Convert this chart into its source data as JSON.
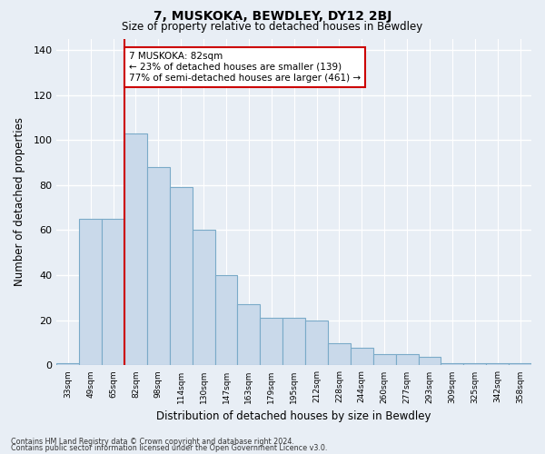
{
  "title": "7, MUSKOKA, BEWDLEY, DY12 2BJ",
  "subtitle": "Size of property relative to detached houses in Bewdley",
  "xlabel": "Distribution of detached houses by size in Bewdley",
  "ylabel": "Number of detached properties",
  "categories": [
    "33sqm",
    "49sqm",
    "65sqm",
    "82sqm",
    "98sqm",
    "114sqm",
    "130sqm",
    "147sqm",
    "163sqm",
    "179sqm",
    "195sqm",
    "212sqm",
    "228sqm",
    "244sqm",
    "260sqm",
    "277sqm",
    "293sqm",
    "309sqm",
    "325sqm",
    "342sqm",
    "358sqm"
  ],
  "values": [
    1,
    65,
    65,
    103,
    88,
    79,
    60,
    40,
    27,
    21,
    21,
    20,
    10,
    8,
    5,
    5,
    4,
    1,
    1,
    1,
    1
  ],
  "bar_color": "#c9d9ea",
  "bar_edge_color": "#7aaac8",
  "highlight_index": 3,
  "highlight_color": "#cc0000",
  "ylim": [
    0,
    145
  ],
  "yticks": [
    0,
    20,
    40,
    60,
    80,
    100,
    120,
    140
  ],
  "annotation_text": "7 MUSKOKA: 82sqm\n← 23% of detached houses are smaller (139)\n77% of semi-detached houses are larger (461) →",
  "annotation_box_color": "#ffffff",
  "annotation_box_edge": "#cc0000",
  "footer1": "Contains HM Land Registry data © Crown copyright and database right 2024.",
  "footer2": "Contains public sector information licensed under the Open Government Licence v3.0.",
  "fig_bg_color": "#e8eef5",
  "plot_bg_color": "#e8eef5"
}
